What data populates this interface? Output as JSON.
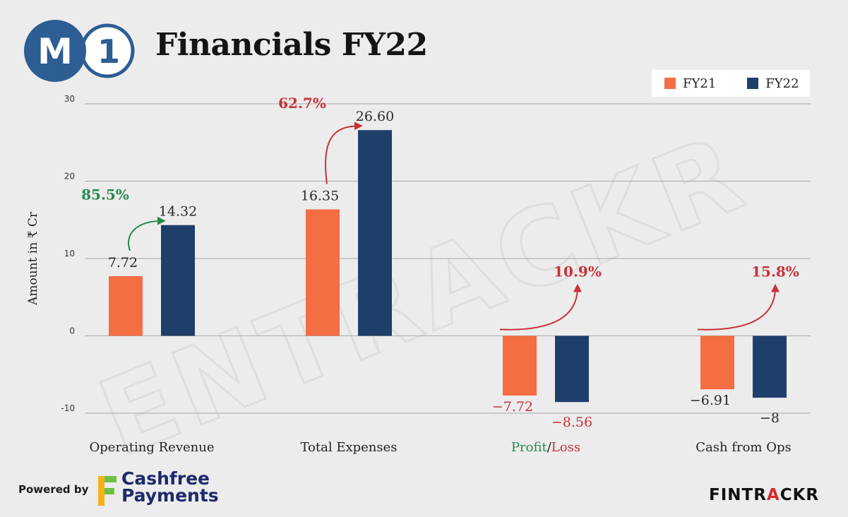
{
  "header": {
    "logo_letters": [
      "M",
      "1"
    ],
    "title": "Financials FY22"
  },
  "colors": {
    "fy21": "#f46d43",
    "fy22": "#1f3f6b",
    "growth_positive": "#268a4e",
    "growth_negative": "#c9313a",
    "logo_blue": "#2c5d93"
  },
  "chart_data": {
    "type": "bar",
    "ylabel": "Amount in ₹ Cr",
    "ylim": [
      -10,
      30
    ],
    "yticks": [
      30,
      20,
      10,
      0,
      -10
    ],
    "grid": true,
    "legend_position": "top-right",
    "categories": [
      "Operating Revenue",
      "Total Expenses",
      "Profit/Loss",
      "Cash from Ops"
    ],
    "series": [
      {
        "name": "FY21",
        "values": [
          7.72,
          16.35,
          -7.72,
          -6.91
        ],
        "labels": [
          "7.72",
          "16.35",
          "-7.72",
          "-6.91"
        ]
      },
      {
        "name": "FY22",
        "values": [
          14.32,
          26.6,
          -8.56,
          -8
        ],
        "labels": [
          "14.32",
          "26.60",
          "-8.56",
          "-8"
        ]
      }
    ],
    "annotations": [
      {
        "category": "Operating Revenue",
        "text": "85.5%",
        "color": "positive"
      },
      {
        "category": "Total Expenses",
        "text": "62.7%",
        "color": "negative"
      },
      {
        "category": "Profit/Loss",
        "text": "10.9%",
        "color": "negative"
      },
      {
        "category": "Cash from Ops",
        "text": "15.8%",
        "color": "negative"
      }
    ],
    "category_label_parts": {
      "Profit/Loss": [
        {
          "text": "Profit",
          "color": "positive"
        },
        {
          "text": "/",
          "color": "neutral"
        },
        {
          "text": "Loss",
          "color": "negative"
        }
      ]
    }
  },
  "footer": {
    "powered_by": "Powered by",
    "cashfree_line1": "Cashfree",
    "cashfree_line2": "Payments",
    "brand_part1": "FINTR",
    "brand_accent": "A",
    "brand_part2": "CKR"
  }
}
